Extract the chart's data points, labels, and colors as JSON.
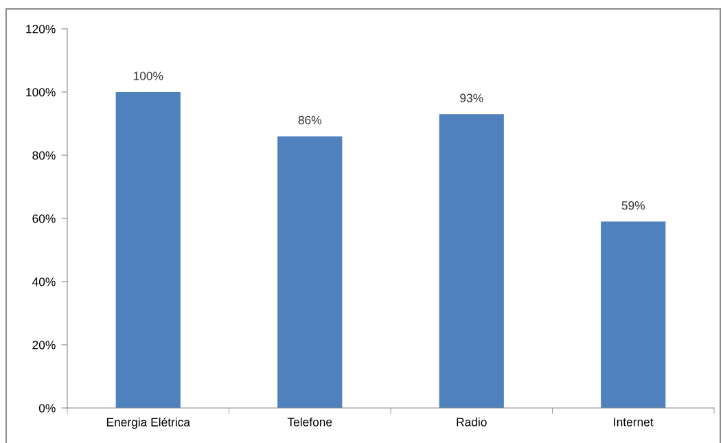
{
  "chart_data": {
    "type": "bar",
    "categories": [
      "Energia Elétrica",
      "Telefone",
      "Radio",
      "Internet"
    ],
    "values": [
      100,
      86,
      93,
      59
    ],
    "color": "#4f81bd",
    "value_labels": [
      "100%",
      "86%",
      "93%",
      "59%"
    ],
    "ylim": [
      0,
      120
    ],
    "yticks": [
      {
        "value": 0,
        "label": "0%"
      },
      {
        "value": 20,
        "label": "20%"
      },
      {
        "value": 40,
        "label": "40%"
      },
      {
        "value": 60,
        "label": "60%"
      },
      {
        "value": 80,
        "label": "80%"
      },
      {
        "value": 100,
        "label": "100%"
      },
      {
        "value": 120,
        "label": "120%"
      }
    ],
    "grid": false
  }
}
